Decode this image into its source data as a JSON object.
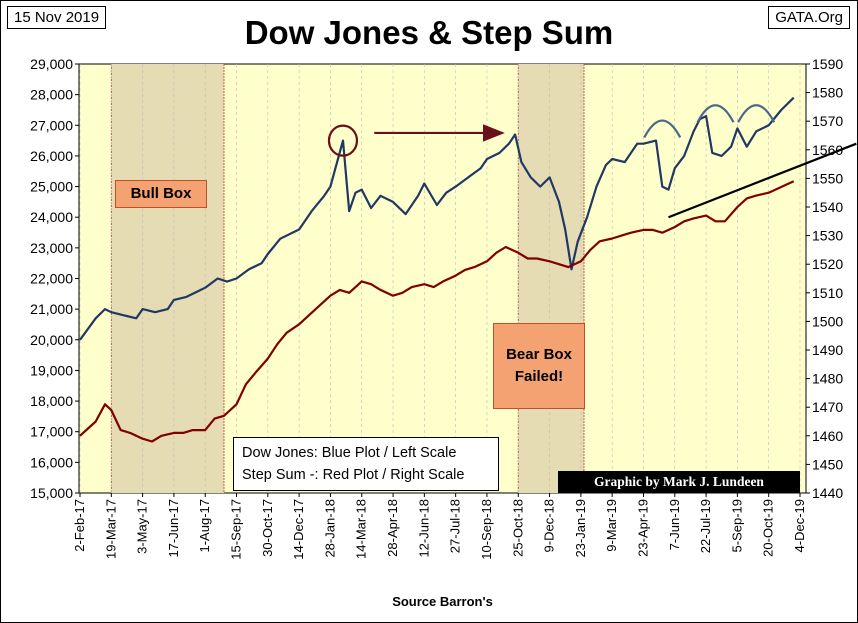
{
  "header": {
    "date": "15 Nov 2019",
    "site": "GATA.Org",
    "title": "Dow Jones & Step Sum",
    "source": "Source Barron's"
  },
  "annotations": {
    "bull_box": "Bull Box",
    "bear_box_line1": "Bear Box",
    "bear_box_line2": "Failed!",
    "legend_line1": "Dow Jones: Blue Plot / Left Scale",
    "legend_line2": "Step Sum -: Red Plot / Right Scale",
    "credit": "Graphic by Mark J. Lundeen"
  },
  "colors": {
    "plot_bg": "#ffffcc",
    "box_shade": "#e6dcb4",
    "dow_line": "#1f3864",
    "step_line": "#800000",
    "arrow": "#6b0f1a",
    "arc": "#4a6a8a",
    "label_fill": "#f5a273"
  },
  "chart_data": {
    "type": "line",
    "title": "Dow Jones & Step Sum",
    "xlabel": "Source Barron's",
    "x_ticks": [
      "2-Feb-17",
      "19-Mar-17",
      "3-May-17",
      "17-Jun-17",
      "1-Aug-17",
      "15-Sep-17",
      "30-Oct-17",
      "14-Dec-17",
      "28-Jan-18",
      "14-Mar-18",
      "28-Apr-18",
      "12-Jun-18",
      "27-Jul-18",
      "10-Sep-18",
      "25-Oct-18",
      "9-Dec-18",
      "23-Jan-19",
      "9-Mar-19",
      "23-Apr-19",
      "7-Jun-19",
      "22-Jul-19",
      "5-Sep-19",
      "20-Oct-19",
      "4-Dec-19"
    ],
    "y_left": {
      "label": "Dow Jones",
      "min": 15000,
      "max": 29000,
      "ticks": [
        "15,000",
        "16,000",
        "17,000",
        "18,000",
        "19,000",
        "20,000",
        "21,000",
        "22,000",
        "23,000",
        "24,000",
        "25,000",
        "26,000",
        "27,000",
        "28,000",
        "29,000"
      ]
    },
    "y_right": {
      "label": "Step Sum",
      "min": 1440,
      "max": 1590,
      "ticks": [
        "1440",
        "1450",
        "1460",
        "1470",
        "1480",
        "1490",
        "1500",
        "1510",
        "1520",
        "1530",
        "1540",
        "1550",
        "1560",
        "1570",
        "1580",
        "1590"
      ]
    },
    "shaded_regions": [
      {
        "name": "Bull Box",
        "start": 1,
        "end": 4.6
      },
      {
        "name": "Bear Box",
        "start": 14,
        "end": 16.1
      }
    ],
    "series": [
      {
        "name": "Dow Jones",
        "axis": "left",
        "points": [
          [
            0,
            20000
          ],
          [
            0.5,
            20700
          ],
          [
            0.8,
            21000
          ],
          [
            1,
            20900
          ],
          [
            1.4,
            20800
          ],
          [
            1.8,
            20700
          ],
          [
            2,
            21000
          ],
          [
            2.4,
            20900
          ],
          [
            2.8,
            21000
          ],
          [
            3,
            21300
          ],
          [
            3.4,
            21400
          ],
          [
            3.8,
            21600
          ],
          [
            4,
            21700
          ],
          [
            4.4,
            22000
          ],
          [
            4.7,
            21900
          ],
          [
            5,
            22000
          ],
          [
            5.4,
            22300
          ],
          [
            5.8,
            22500
          ],
          [
            6,
            22800
          ],
          [
            6.4,
            23300
          ],
          [
            6.8,
            23500
          ],
          [
            7,
            23600
          ],
          [
            7.4,
            24200
          ],
          [
            7.8,
            24700
          ],
          [
            8,
            25000
          ],
          [
            8.4,
            26500
          ],
          [
            8.6,
            24200
          ],
          [
            8.8,
            24800
          ],
          [
            9,
            24900
          ],
          [
            9.3,
            24300
          ],
          [
            9.6,
            24700
          ],
          [
            10,
            24500
          ],
          [
            10.4,
            24100
          ],
          [
            10.8,
            24700
          ],
          [
            11,
            25100
          ],
          [
            11.4,
            24400
          ],
          [
            11.7,
            24800
          ],
          [
            12,
            25000
          ],
          [
            12.4,
            25300
          ],
          [
            12.8,
            25600
          ],
          [
            13,
            25900
          ],
          [
            13.4,
            26100
          ],
          [
            13.7,
            26400
          ],
          [
            13.9,
            26700
          ],
          [
            14.1,
            25800
          ],
          [
            14.4,
            25300
          ],
          [
            14.7,
            25000
          ],
          [
            15,
            25300
          ],
          [
            15.3,
            24500
          ],
          [
            15.5,
            23600
          ],
          [
            15.7,
            22300
          ],
          [
            15.9,
            23200
          ],
          [
            16.2,
            24000
          ],
          [
            16.5,
            25000
          ],
          [
            16.8,
            25700
          ],
          [
            17,
            25900
          ],
          [
            17.4,
            25800
          ],
          [
            17.8,
            26400
          ],
          [
            18,
            26400
          ],
          [
            18.4,
            26500
          ],
          [
            18.6,
            25000
          ],
          [
            18.8,
            24900
          ],
          [
            19,
            25600
          ],
          [
            19.3,
            26000
          ],
          [
            19.6,
            26800
          ],
          [
            19.8,
            27200
          ],
          [
            20,
            27300
          ],
          [
            20.2,
            26100
          ],
          [
            20.5,
            26000
          ],
          [
            20.8,
            26300
          ],
          [
            21,
            26900
          ],
          [
            21.3,
            26300
          ],
          [
            21.6,
            26800
          ],
          [
            22,
            27000
          ],
          [
            22.4,
            27500
          ],
          [
            22.8,
            27900
          ]
        ]
      },
      {
        "name": "Step Sum",
        "axis": "right",
        "points": [
          [
            0,
            1460
          ],
          [
            0.5,
            1465
          ],
          [
            0.8,
            1471
          ],
          [
            1,
            1469
          ],
          [
            1.3,
            1462
          ],
          [
            1.6,
            1461
          ],
          [
            2,
            1459
          ],
          [
            2.3,
            1458
          ],
          [
            2.6,
            1460
          ],
          [
            3,
            1461
          ],
          [
            3.3,
            1461
          ],
          [
            3.6,
            1462
          ],
          [
            4,
            1462
          ],
          [
            4.3,
            1466
          ],
          [
            4.6,
            1467
          ],
          [
            5,
            1471
          ],
          [
            5.3,
            1478
          ],
          [
            5.6,
            1482
          ],
          [
            6,
            1487
          ],
          [
            6.3,
            1492
          ],
          [
            6.6,
            1496
          ],
          [
            7,
            1499
          ],
          [
            7.3,
            1502
          ],
          [
            7.6,
            1505
          ],
          [
            8,
            1509
          ],
          [
            8.3,
            1511
          ],
          [
            8.6,
            1510
          ],
          [
            9,
            1514
          ],
          [
            9.3,
            1513
          ],
          [
            9.6,
            1511
          ],
          [
            10,
            1509
          ],
          [
            10.3,
            1510
          ],
          [
            10.6,
            1512
          ],
          [
            11,
            1513
          ],
          [
            11.3,
            1512
          ],
          [
            11.6,
            1514
          ],
          [
            12,
            1516
          ],
          [
            12.3,
            1518
          ],
          [
            12.6,
            1519
          ],
          [
            13,
            1521
          ],
          [
            13.3,
            1524
          ],
          [
            13.6,
            1526
          ],
          [
            14,
            1524
          ],
          [
            14.3,
            1522
          ],
          [
            14.6,
            1522
          ],
          [
            15,
            1521
          ],
          [
            15.3,
            1520
          ],
          [
            15.6,
            1519
          ],
          [
            16,
            1521
          ],
          [
            16.3,
            1525
          ],
          [
            16.6,
            1528
          ],
          [
            17,
            1529
          ],
          [
            17.3,
            1530
          ],
          [
            17.6,
            1531
          ],
          [
            18,
            1532
          ],
          [
            18.3,
            1532
          ],
          [
            18.6,
            1531
          ],
          [
            19,
            1533
          ],
          [
            19.3,
            1535
          ],
          [
            19.6,
            1536
          ],
          [
            20,
            1537
          ],
          [
            20.3,
            1535
          ],
          [
            20.6,
            1535
          ],
          [
            21,
            1540
          ],
          [
            21.3,
            1543
          ],
          [
            21.6,
            1544
          ],
          [
            22,
            1545
          ],
          [
            22.4,
            1547
          ],
          [
            22.8,
            1549
          ]
        ]
      }
    ],
    "markers": [
      {
        "kind": "circle",
        "x": 8.4,
        "y": 26500
      },
      {
        "kind": "arrow",
        "x1": 9.4,
        "y1": 26750,
        "x2": 13.5,
        "y2": 26750
      },
      {
        "kind": "trendline",
        "x1": 18.8,
        "y1": 24000,
        "x2": 24.8,
        "y2": 26400
      },
      {
        "kind": "arc",
        "x": 18.6,
        "y": 26600
      },
      {
        "kind": "arc",
        "x": 20.3,
        "y": 27100
      },
      {
        "kind": "arc",
        "x": 21.6,
        "y": 27100
      }
    ]
  }
}
